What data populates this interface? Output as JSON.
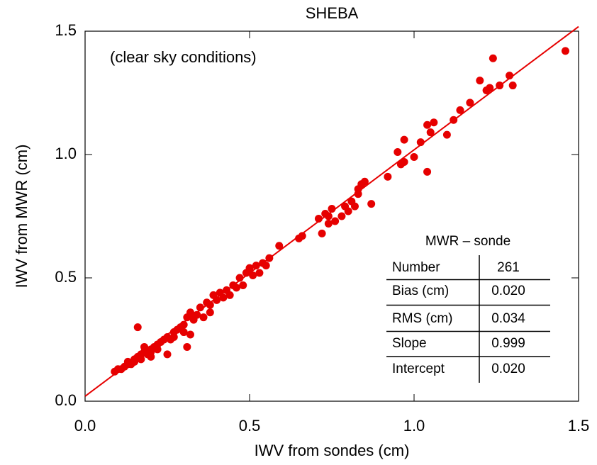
{
  "chart_data": {
    "type": "scatter",
    "title": "SHEBA",
    "x_label": "IWV from sondes (cm)",
    "y_label": "IWV from MWR (cm)",
    "annotation": "(clear sky conditions)",
    "xlim": [
      0,
      1.5
    ],
    "ylim": [
      0,
      1.5
    ],
    "xticks": [
      {
        "value": 0,
        "label": "0.0"
      },
      0.5,
      {
        "value": 1,
        "label": "1.0"
      },
      1.5
    ],
    "yticks": [
      {
        "value": 0,
        "label": "0.0"
      },
      0.5,
      {
        "value": 1,
        "label": "1.0"
      },
      1.5
    ],
    "series": [
      {
        "color": "#e60000",
        "x": [
          0.09,
          0.1,
          0.11,
          0.12,
          0.13,
          0.13,
          0.14,
          0.15,
          0.15,
          0.16,
          0.16,
          0.17,
          0.17,
          0.18,
          0.18,
          0.19,
          0.2,
          0.2,
          0.21,
          0.22,
          0.22,
          0.23,
          0.24,
          0.25,
          0.25,
          0.26,
          0.27,
          0.27,
          0.28,
          0.29,
          0.3,
          0.3,
          0.31,
          0.31,
          0.32,
          0.32,
          0.33,
          0.34,
          0.35,
          0.36,
          0.37,
          0.38,
          0.38,
          0.39,
          0.4,
          0.41,
          0.42,
          0.43,
          0.44,
          0.45,
          0.46,
          0.47,
          0.48,
          0.49,
          0.5,
          0.51,
          0.52,
          0.53,
          0.54,
          0.55,
          0.56,
          0.59,
          0.65,
          0.66,
          0.71,
          0.72,
          0.73,
          0.74,
          0.75,
          0.76,
          0.78,
          0.79,
          0.8,
          0.81,
          0.82,
          0.83,
          0.84,
          0.85,
          0.87,
          0.92,
          0.95,
          0.96,
          0.97,
          0.97,
          1.0,
          1.02,
          1.04,
          1.04,
          1.05,
          1.06,
          1.1,
          1.12,
          1.14,
          1.17,
          1.2,
          1.22,
          1.23,
          1.24,
          1.26,
          1.29,
          1.3,
          1.46,
          0.74,
          0.83,
          0.2
        ],
        "values": [
          0.12,
          0.13,
          0.13,
          0.14,
          0.15,
          0.16,
          0.15,
          0.17,
          0.16,
          0.18,
          0.3,
          0.19,
          0.17,
          0.2,
          0.22,
          0.19,
          0.21,
          0.2,
          0.22,
          0.23,
          0.21,
          0.24,
          0.25,
          0.19,
          0.26,
          0.25,
          0.28,
          0.26,
          0.29,
          0.3,
          0.31,
          0.28,
          0.22,
          0.34,
          0.36,
          0.27,
          0.33,
          0.35,
          0.38,
          0.34,
          0.4,
          0.39,
          0.36,
          0.43,
          0.41,
          0.44,
          0.42,
          0.45,
          0.43,
          0.47,
          0.46,
          0.5,
          0.47,
          0.52,
          0.54,
          0.51,
          0.55,
          0.52,
          0.56,
          0.55,
          0.58,
          0.63,
          0.66,
          0.67,
          0.74,
          0.68,
          0.76,
          0.75,
          0.78,
          0.73,
          0.75,
          0.79,
          0.77,
          0.81,
          0.79,
          0.86,
          0.88,
          0.89,
          0.8,
          0.91,
          1.01,
          0.96,
          1.06,
          0.97,
          0.99,
          1.05,
          0.93,
          1.12,
          1.09,
          1.13,
          1.08,
          1.14,
          1.18,
          1.21,
          1.3,
          1.26,
          1.27,
          1.39,
          1.28,
          1.32,
          1.28,
          1.42,
          0.72,
          0.84,
          0.18
        ]
      }
    ],
    "fit_line": {
      "color": "#e60000",
      "x": [
        0,
        1.5
      ],
      "values": [
        0.02,
        1.5185
      ]
    },
    "stats_table": {
      "title": "MWR – sonde",
      "rows": [
        [
          "Number",
          "261"
        ],
        [
          "Bias (cm)",
          "0.020"
        ],
        [
          "RMS (cm)",
          "0.034"
        ],
        [
          "Slope",
          "0.999"
        ],
        [
          "Intercept",
          "0.020"
        ]
      ]
    }
  }
}
